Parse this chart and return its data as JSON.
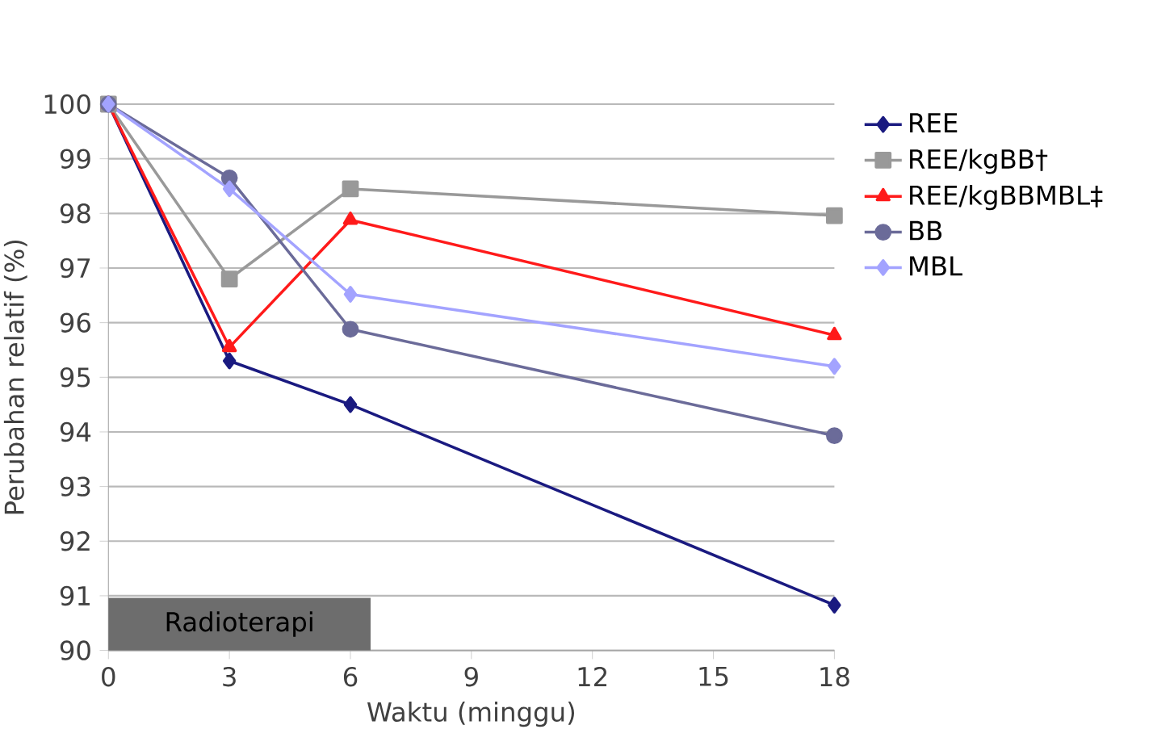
{
  "chart_data": {
    "type": "line",
    "xlabel": "Waktu (minggu)",
    "ylabel": "Perubahan relatif (%)",
    "xlim": [
      0,
      18
    ],
    "xticks": [
      0,
      3,
      6,
      9,
      12,
      15,
      18
    ],
    "ylim": [
      90,
      100
    ],
    "yticks": [
      90,
      91,
      92,
      93,
      94,
      95,
      96,
      97,
      98,
      99,
      100
    ],
    "grid": "y",
    "legend": "right",
    "line_style": "solid",
    "x": [
      0,
      3,
      6,
      18
    ],
    "series": [
      {
        "name": "REE",
        "color": "#1a1a80",
        "marker": "diamond",
        "values": [
          100,
          95.3,
          94.5,
          90.83
        ]
      },
      {
        "name": "REE/kgBB†",
        "color": "#999999",
        "marker": "square",
        "values": [
          100,
          96.8,
          98.45,
          97.96
        ]
      },
      {
        "name": "REE/kgBBMBL‡",
        "color": "#ff1a1a",
        "marker": "triangle",
        "values": [
          100,
          95.55,
          97.88,
          95.77
        ]
      },
      {
        "name": "BB",
        "color": "#6b6b99",
        "marker": "circle",
        "values": [
          100,
          98.65,
          95.88,
          93.93
        ]
      },
      {
        "name": "MBL",
        "color": "#a3a3ff",
        "marker": "diamond",
        "values": [
          100,
          98.45,
          96.52,
          95.2
        ]
      }
    ],
    "bands": [
      {
        "axis": "x",
        "from": 0,
        "to": 6.5,
        "label": "Radioterapi",
        "color": "#6d6d6d"
      }
    ]
  }
}
